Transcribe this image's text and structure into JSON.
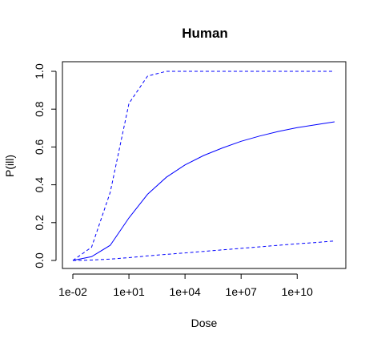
{
  "chart_data": {
    "type": "line",
    "title": "Human",
    "xlabel": "Dose",
    "ylabel": "P(ill)",
    "x_scale": "log10",
    "xlim": [
      0.01,
      1000000000000
    ],
    "ylim": [
      0,
      1
    ],
    "x_ticks": [
      0.01,
      10,
      10000,
      10000000,
      10000000000
    ],
    "x_tick_labels": [
      "1e-02",
      "1e+01",
      "1e+04",
      "1e+07",
      "1e+10"
    ],
    "y_ticks": [
      0.0,
      0.2,
      0.4,
      0.6,
      0.8,
      1.0
    ],
    "y_tick_labels": [
      "0.0",
      "0.2",
      "0.4",
      "0.6",
      "0.8",
      "1.0"
    ],
    "grid": false,
    "legend": "none",
    "series": [
      {
        "line_style": "dashed",
        "color": "#0000ff",
        "x": [
          0.01,
          0.1,
          1,
          10,
          100,
          1000,
          10000,
          1000000000000
        ],
        "y": [
          0.0,
          0.07,
          0.36,
          0.83,
          0.975,
          1.0,
          1.0,
          1.0
        ]
      },
      {
        "line_style": "solid",
        "color": "#0000ff",
        "x": [
          0.01,
          0.1,
          1,
          10,
          100,
          1000,
          10000,
          100000,
          1000000,
          10000000,
          100000000,
          1000000000,
          10000000000,
          100000000000,
          1000000000000
        ],
        "y": [
          0.0,
          0.02,
          0.08,
          0.225,
          0.35,
          0.44,
          0.505,
          0.555,
          0.595,
          0.63,
          0.658,
          0.682,
          0.702,
          0.718,
          0.733
        ]
      },
      {
        "line_style": "dashed",
        "color": "#0000ff",
        "x": [
          0.01,
          0.1,
          1,
          10,
          100,
          1000,
          10000,
          100000,
          1000000,
          10000000,
          100000000,
          1000000000,
          10000000000,
          100000000000,
          1000000000000
        ],
        "y": [
          0.0,
          0.002,
          0.007,
          0.015,
          0.024,
          0.032,
          0.04,
          0.048,
          0.056,
          0.064,
          0.072,
          0.08,
          0.088,
          0.095,
          0.103
        ]
      }
    ]
  }
}
